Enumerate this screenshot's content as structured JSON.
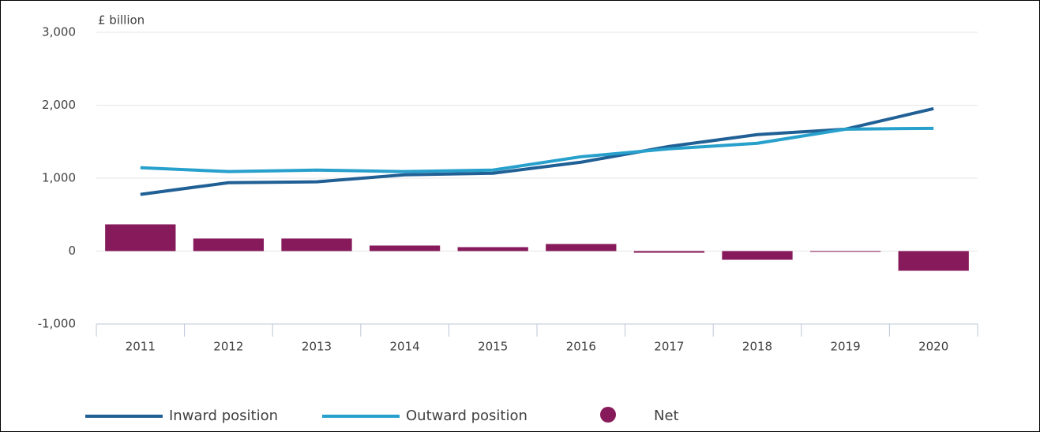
{
  "chart_data": {
    "type": "bar_line",
    "y_axis_label": "£ billion",
    "categories": [
      "2011",
      "2012",
      "2013",
      "2014",
      "2015",
      "2016",
      "2017",
      "2018",
      "2019",
      "2020"
    ],
    "series": [
      {
        "name": "Inward position",
        "type": "line",
        "color": "#206095",
        "values": [
          777,
          938,
          950,
          1046,
          1068,
          1219,
          1435,
          1597,
          1672,
          1953
        ]
      },
      {
        "name": "Outward position",
        "type": "line",
        "color": "#27a0cc",
        "values": [
          1143,
          1090,
          1111,
          1090,
          1111,
          1294,
          1402,
          1478,
          1672,
          1683
        ]
      },
      {
        "name": "Net",
        "type": "bar",
        "color": "#871a5b",
        "values": [
          367,
          173,
          173,
          76,
          54,
          97,
          -22,
          -119,
          -5,
          -270
        ]
      }
    ],
    "ylim": [
      -1000,
      3000
    ],
    "yticks": [
      {
        "value": -1000,
        "label": "-1,000"
      },
      0,
      {
        "value": 1000,
        "label": "1,000"
      },
      {
        "value": 2000,
        "label": "2,000"
      },
      {
        "value": 3000,
        "label": "3,000"
      }
    ],
    "grid": true,
    "legend": "bottom"
  }
}
